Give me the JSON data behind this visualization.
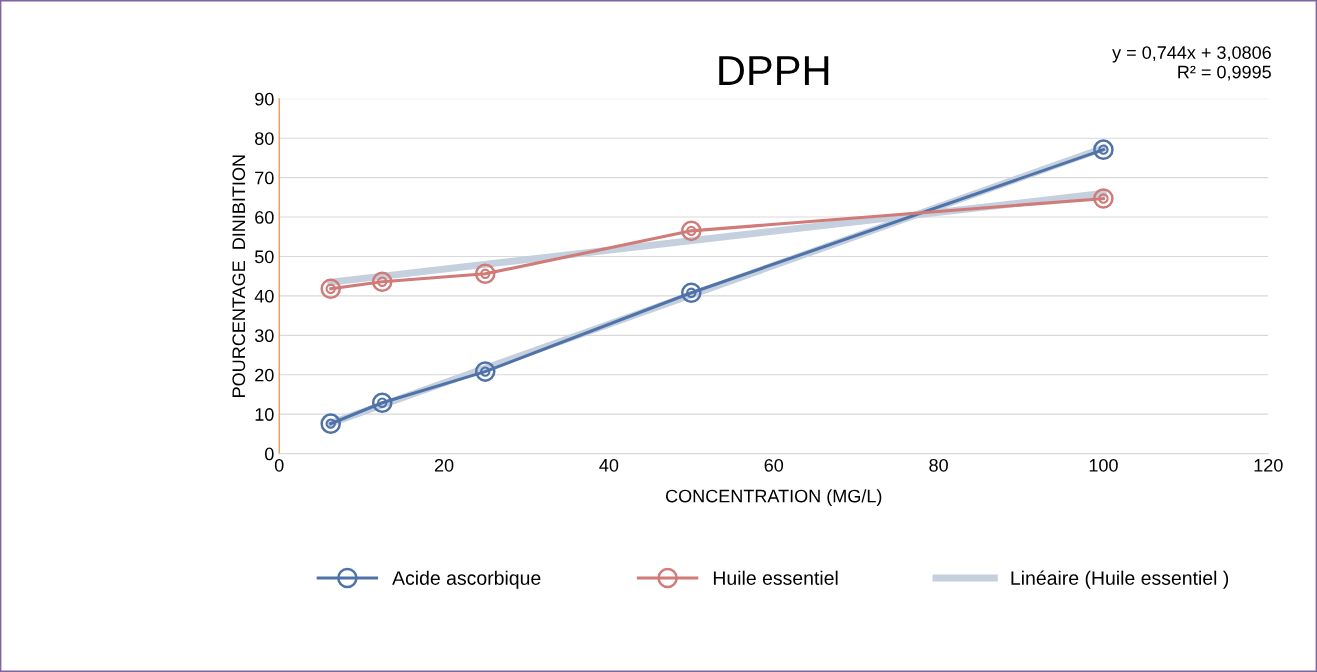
{
  "chart_data": {
    "type": "line",
    "title": "DPPH",
    "xlabel": "CONCENTRATION (MG/L)",
    "ylabel": "POURCENTAGE  DINIBITION",
    "xlim": [
      0,
      120
    ],
    "xticks": [
      0,
      20,
      40,
      60,
      80,
      100,
      120
    ],
    "ylim": [
      0,
      90
    ],
    "yticks": [
      0,
      10,
      20,
      30,
      40,
      50,
      60,
      70,
      80,
      90
    ],
    "grid": "y",
    "legend": "bottom",
    "annotations": [
      "y = 0,744x + 3,0806\nR² = 0,9995"
    ],
    "series": [
      {
        "name": "Acide ascorbique",
        "color": "#4f72a8",
        "marker": "circle",
        "x": [
          6.25,
          12.5,
          25,
          50,
          100
        ],
        "values": [
          7.6,
          12.9,
          20.8,
          40.8,
          77.1
        ]
      },
      {
        "name": "Huile essentiel",
        "color": "#d07b78",
        "marker": "circle",
        "x": [
          6.25,
          12.5,
          25,
          50,
          100
        ],
        "values": [
          41.8,
          43.6,
          45.6,
          56.5,
          64.7
        ]
      },
      {
        "color": "#c5d0df",
        "x": [
          6.25,
          100
        ],
        "values": [
          7.7,
          77.5
        ]
      },
      {
        "name": "Linéaire (Huile essentiel )",
        "color": "#c5d0df",
        "x": [
          6.25,
          100
        ],
        "values": [
          43.5,
          66.0
        ]
      }
    ]
  }
}
